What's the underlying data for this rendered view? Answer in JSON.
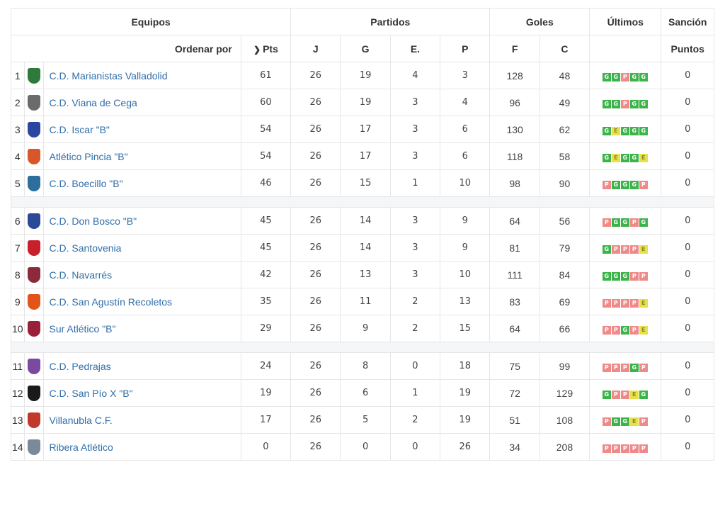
{
  "headers": {
    "equipos": "Equipos",
    "partidos": "Partidos",
    "goles": "Goles",
    "ultimos": "Últimos",
    "sancion": "Sanción",
    "ordenar_por": "Ordenar por",
    "pts": "Pts",
    "j": "J",
    "g": "G",
    "e": "E.",
    "p": "P",
    "f": "F",
    "c": "C",
    "puntos": "Puntos"
  },
  "group1": [
    {
      "pos": "1",
      "name": "C.D. Marianistas Valladolid",
      "crest_color": "#2f7a3b",
      "pts": "61",
      "j": "26",
      "g": "19",
      "e": "4",
      "p": "3",
      "f": "128",
      "c": "48",
      "last": [
        "G",
        "G",
        "P",
        "G",
        "G"
      ],
      "sancion": "0"
    },
    {
      "pos": "2",
      "name": "C.D. Viana de Cega",
      "crest_color": "#6b6b6b",
      "pts": "60",
      "j": "26",
      "g": "19",
      "e": "3",
      "p": "4",
      "f": "96",
      "c": "49",
      "last": [
        "G",
        "G",
        "P",
        "G",
        "G"
      ],
      "sancion": "0"
    },
    {
      "pos": "3",
      "name": "C.D. Iscar \"B\"",
      "crest_color": "#2a46a0",
      "pts": "54",
      "j": "26",
      "g": "17",
      "e": "3",
      "p": "6",
      "f": "130",
      "c": "62",
      "last": [
        "G",
        "E",
        "G",
        "G",
        "G"
      ],
      "sancion": "0"
    },
    {
      "pos": "4",
      "name": "Atlético Pincia \"B\"",
      "crest_color": "#d8562a",
      "pts": "54",
      "j": "26",
      "g": "17",
      "e": "3",
      "p": "6",
      "f": "118",
      "c": "58",
      "last": [
        "G",
        "E",
        "G",
        "G",
        "E"
      ],
      "sancion": "0"
    },
    {
      "pos": "5",
      "name": "C.D. Boecillo \"B\"",
      "crest_color": "#2d6e9e",
      "pts": "46",
      "j": "26",
      "g": "15",
      "e": "1",
      "p": "10",
      "f": "98",
      "c": "90",
      "last": [
        "P",
        "G",
        "G",
        "G",
        "P"
      ],
      "sancion": "0"
    }
  ],
  "group2": [
    {
      "pos": "6",
      "name": "C.D. Don Bosco \"B\"",
      "crest_color": "#2a4a98",
      "pts": "45",
      "j": "26",
      "g": "14",
      "e": "3",
      "p": "9",
      "f": "64",
      "c": "56",
      "last": [
        "P",
        "G",
        "G",
        "P",
        "G"
      ],
      "sancion": "0"
    },
    {
      "pos": "7",
      "name": "C.D. Santovenia",
      "crest_color": "#c8202a",
      "pts": "45",
      "j": "26",
      "g": "14",
      "e": "3",
      "p": "9",
      "f": "81",
      "c": "79",
      "last": [
        "G",
        "P",
        "P",
        "P",
        "E"
      ],
      "sancion": "0"
    },
    {
      "pos": "8",
      "name": "C.D. Navarrés",
      "crest_color": "#8a2a3a",
      "pts": "42",
      "j": "26",
      "g": "13",
      "e": "3",
      "p": "10",
      "f": "111",
      "c": "84",
      "last": [
        "G",
        "G",
        "G",
        "P",
        "P"
      ],
      "sancion": "0"
    },
    {
      "pos": "9",
      "name": "C.D. San Agustín Recoletos",
      "crest_color": "#e2541c",
      "pts": "35",
      "j": "26",
      "g": "11",
      "e": "2",
      "p": "13",
      "f": "83",
      "c": "69",
      "last": [
        "P",
        "P",
        "P",
        "P",
        "E"
      ],
      "sancion": "0"
    },
    {
      "pos": "10",
      "name": "Sur Atlético \"B\"",
      "crest_color": "#9a1f3a",
      "pts": "29",
      "j": "26",
      "g": "9",
      "e": "2",
      "p": "15",
      "f": "64",
      "c": "66",
      "last": [
        "P",
        "P",
        "G",
        "P",
        "E"
      ],
      "sancion": "0"
    }
  ],
  "group3": [
    {
      "pos": "11",
      "name": "C.D. Pedrajas",
      "crest_color": "#7a4aa0",
      "pts": "24",
      "j": "26",
      "g": "8",
      "e": "0",
      "p": "18",
      "f": "75",
      "c": "99",
      "last": [
        "P",
        "P",
        "P",
        "G",
        "P"
      ],
      "sancion": "0"
    },
    {
      "pos": "12",
      "name": "C.D. San Pío X \"B\"",
      "crest_color": "#1a1a1a",
      "pts": "19",
      "j": "26",
      "g": "6",
      "e": "1",
      "p": "19",
      "f": "72",
      "c": "129",
      "last": [
        "G",
        "P",
        "P",
        "E",
        "G"
      ],
      "sancion": "0"
    },
    {
      "pos": "13",
      "name": "Villanubla C.F.",
      "crest_color": "#c0392b",
      "pts": "17",
      "j": "26",
      "g": "5",
      "e": "2",
      "p": "19",
      "f": "51",
      "c": "108",
      "last": [
        "P",
        "G",
        "G",
        "E",
        "P"
      ],
      "sancion": "0"
    },
    {
      "pos": "14",
      "name": "Ribera Atlético",
      "crest_color": "#7a8a9a",
      "pts": "0",
      "j": "26",
      "g": "0",
      "e": "0",
      "p": "26",
      "f": "34",
      "c": "208",
      "last": [
        "P",
        "P",
        "P",
        "P",
        "P"
      ],
      "sancion": "0"
    }
  ]
}
